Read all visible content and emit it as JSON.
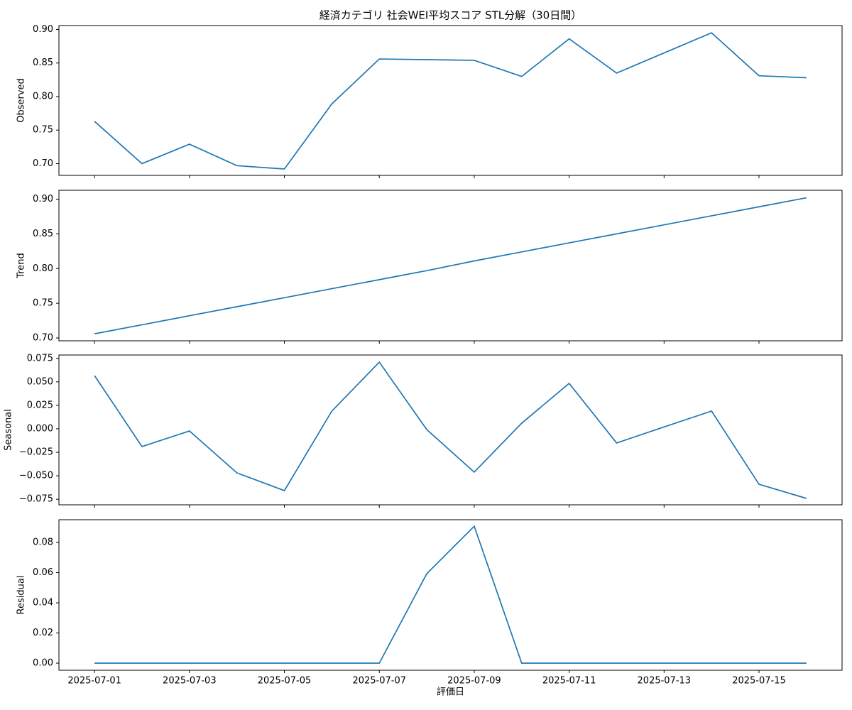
{
  "chart_data": [
    {
      "type": "line",
      "title": "経済カテゴリ 社会WEI平均スコア STL分解（30日間）",
      "y_label": "Observed",
      "color": "#1f77b4",
      "values": [
        0.763,
        0.7,
        0.729,
        0.697,
        0.692,
        0.789,
        0.856,
        0.855,
        0.854,
        0.83,
        0.886,
        0.835,
        0.865,
        0.895,
        0.831,
        0.828
      ],
      "ylim": [
        0.6825,
        0.9058
      ],
      "yticks": [
        {
          "value": 0.7,
          "label": "0.70"
        },
        {
          "value": 0.75,
          "label": "0.75"
        },
        {
          "value": 0.8,
          "label": "0.80"
        },
        {
          "value": 0.85,
          "label": "0.85"
        },
        {
          "value": 0.9,
          "label": "0.90"
        }
      ]
    },
    {
      "type": "line",
      "y_label": "Trend",
      "color": "#1f77b4",
      "values": [
        0.706,
        0.719,
        0.732,
        0.745,
        0.758,
        0.771,
        0.784,
        0.797,
        0.811,
        0.824,
        0.837,
        0.85,
        0.863,
        0.876,
        0.889,
        0.902
      ],
      "ylim": [
        0.6959,
        0.9128
      ],
      "yticks": [
        {
          "value": 0.7,
          "label": "0.70"
        },
        {
          "value": 0.75,
          "label": "0.75"
        },
        {
          "value": 0.8,
          "label": "0.80"
        },
        {
          "value": 0.85,
          "label": "0.85"
        },
        {
          "value": 0.9,
          "label": "0.90"
        }
      ]
    },
    {
      "type": "line",
      "y_label": "Seasonal",
      "color": "#1f77b4",
      "values": [
        0.0567,
        -0.0189,
        -0.0023,
        -0.0469,
        -0.0658,
        0.0189,
        0.071,
        -0.0008,
        -0.0461,
        0.006,
        0.0484,
        -0.0151,
        0.002,
        0.0189,
        -0.059,
        -0.0741
      ],
      "ylim": [
        -0.0809,
        0.0786
      ],
      "yticks": [
        {
          "value": -0.075,
          "label": "−0.075"
        },
        {
          "value": -0.05,
          "label": "−0.050"
        },
        {
          "value": -0.025,
          "label": "−0.025"
        },
        {
          "value": 0,
          "label": "0.000"
        },
        {
          "value": 0.025,
          "label": "0.025"
        },
        {
          "value": 0.05,
          "label": "0.050"
        },
        {
          "value": 0.075,
          "label": "0.075"
        }
      ]
    },
    {
      "type": "line",
      "y_label": "Residual",
      "x_label": "評価日",
      "color": "#1f77b4",
      "x": [
        "2025-07-01",
        "2025-07-02",
        "2025-07-03",
        "2025-07-04",
        "2025-07-05",
        "2025-07-06",
        "2025-07-07",
        "2025-07-08",
        "2025-07-09",
        "2025-07-10",
        "2025-07-11",
        "2025-07-12",
        "2025-07-13",
        "2025-07-14",
        "2025-07-15",
        "2025-07-16"
      ],
      "values": [
        0,
        0,
        0,
        0,
        0,
        0,
        0,
        0.0593,
        0.0908,
        0,
        0,
        0,
        0,
        0,
        0,
        0
      ],
      "ylim": [
        -0.0047,
        0.0951
      ],
      "yticks": [
        {
          "value": 0,
          "label": "0.00"
        },
        {
          "value": 0.02,
          "label": "0.02"
        },
        {
          "value": 0.04,
          "label": "0.04"
        },
        {
          "value": 0.06,
          "label": "0.06"
        },
        {
          "value": 0.08,
          "label": "0.08"
        }
      ],
      "xticks": [
        "2025-07-01",
        "2025-07-03",
        "2025-07-05",
        "2025-07-07",
        "2025-07-09",
        "2025-07-11",
        "2025-07-13",
        "2025-07-15"
      ]
    }
  ]
}
